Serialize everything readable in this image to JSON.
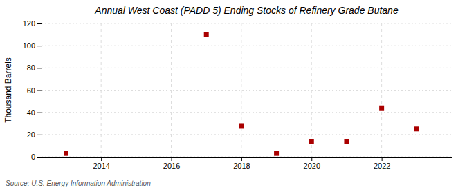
{
  "chart_data": {
    "type": "scatter",
    "title": "Annual West Coast (PADD 5) Ending Stocks of Refinery Grade Butane",
    "ylabel": "Thousand Barrels",
    "annotations": [
      "Source: U.S. Energy Information Administration"
    ],
    "x": [
      2013,
      2017,
      2018,
      2019,
      2020,
      2021,
      2022,
      2023
    ],
    "values": [
      3,
      110,
      28,
      3,
      14,
      14,
      44,
      25
    ],
    "color": "#aa0000",
    "marker": "square",
    "xlim": [
      2012.3,
      2024.0
    ],
    "ylim": [
      0,
      120
    ],
    "xticks": [
      2014,
      2016,
      2018,
      2020,
      2022
    ],
    "yticks": [
      0,
      20,
      40,
      60,
      80,
      100,
      120
    ],
    "grid": true
  }
}
